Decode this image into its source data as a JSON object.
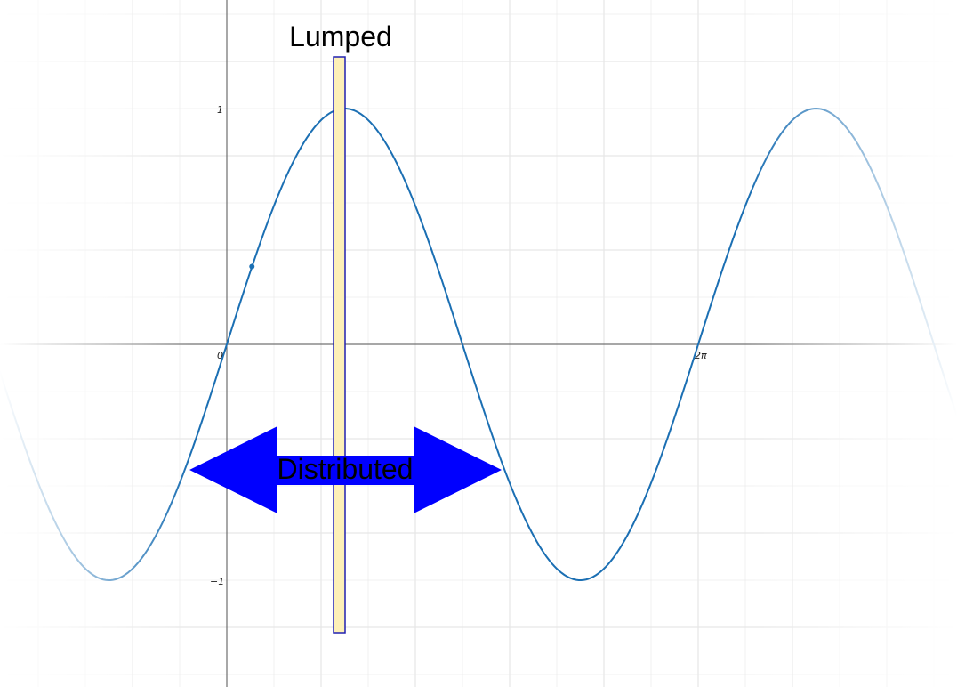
{
  "labels": {
    "top": "Lumped",
    "arrow": "Distributed"
  },
  "axes": {
    "x_ticks": [
      "0",
      "2π"
    ],
    "y_ticks": [
      "1",
      "−1"
    ]
  },
  "curve": {
    "function": "sin(x)",
    "amplitude": 1,
    "x_range": [
      -4.75,
      14.85
    ]
  },
  "marker": {
    "x": 0.335,
    "y": 0.33
  },
  "lumped_bar": {
    "x_center": 1.5
  },
  "colors": {
    "curve": "#1b6fb3",
    "arrow": "#0000ff",
    "bar_fill": "#fdf0b8",
    "bar_stroke": "#2020b0",
    "axis": "#555555",
    "grid": "#e6e6e6"
  }
}
